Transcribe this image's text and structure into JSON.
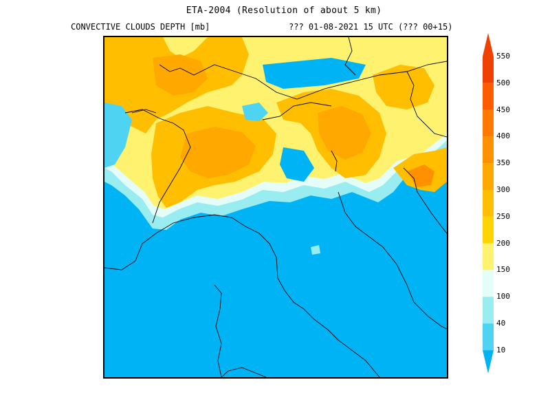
{
  "header": {
    "title": "ETA-2004 (Resolution of about 5 km)",
    "field_label": "CONVECTIVE CLOUDS DEPTH [mb]",
    "time_label": "??? 01-08-2021 15 UTC (??? 00+15)"
  },
  "legend": {
    "levels": [
      "10",
      "40",
      "100",
      "150",
      "200",
      "250",
      "300",
      "350",
      "400",
      "450",
      "500",
      "550"
    ],
    "colors": [
      "#00b3f5",
      "#4fd3f2",
      "#99ecf0",
      "#e5fdf9",
      "#fff26e",
      "#ffd400",
      "#ffbe00",
      "#ffa800",
      "#ff9000",
      "#ff7800",
      "#ff5c00",
      "#f04000"
    ]
  },
  "colors": {
    "sea_land_low": "#00b3f5",
    "borders": "#000000"
  }
}
